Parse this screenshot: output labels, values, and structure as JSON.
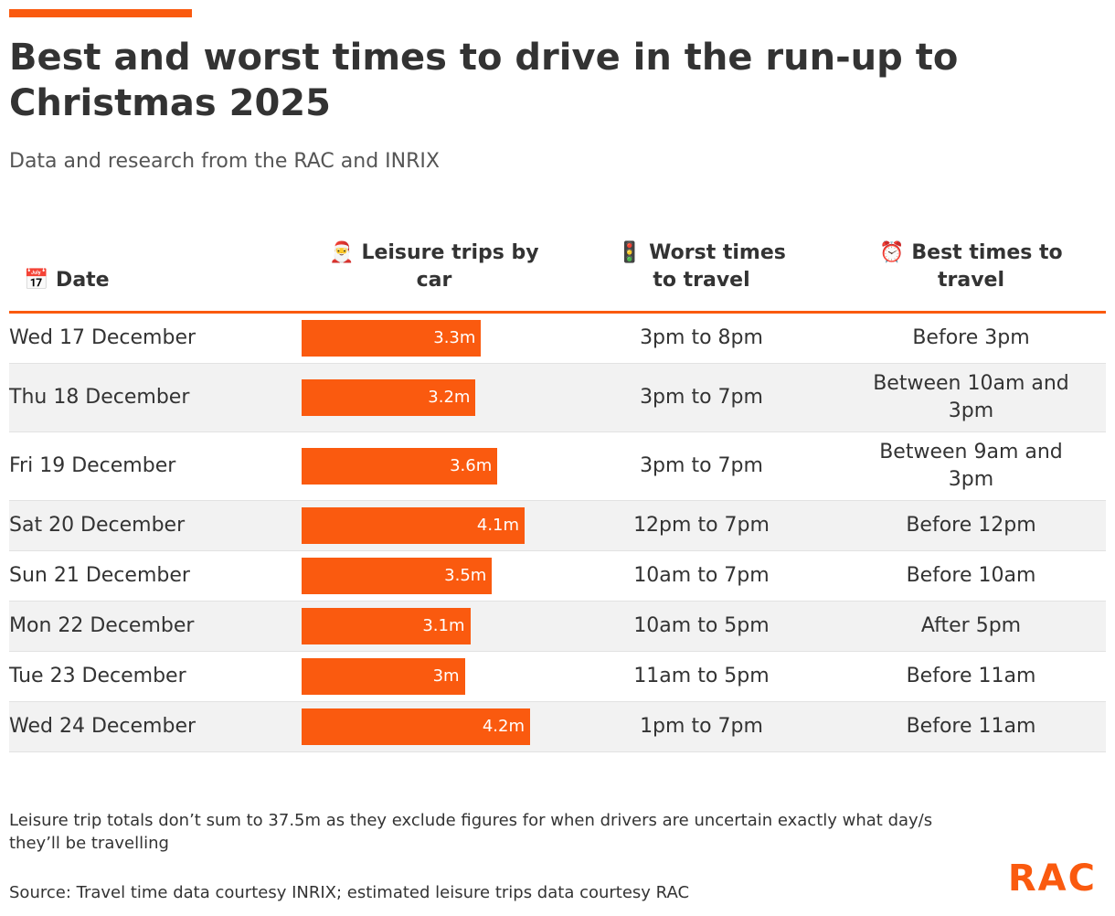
{
  "header": {
    "title": "Best and worst times to drive in the run-up to Christmas 2025",
    "subtitle": "Data and research from the RAC and INRIX"
  },
  "table": {
    "columns": [
      "📅 Date",
      "🎅 Leisure trips by car",
      "🚦 Worst times to travel",
      "⏰ Best times to travel"
    ],
    "rows": [
      {
        "date": "Wed 17 December",
        "trips": 3.3,
        "trips_label": "3.3m",
        "worst": "3pm to 8pm",
        "best": "Before 3pm"
      },
      {
        "date": "Thu 18 December",
        "trips": 3.2,
        "trips_label": "3.2m",
        "worst": "3pm to 7pm",
        "best": "Between 10am and 3pm"
      },
      {
        "date": "Fri 19 December",
        "trips": 3.6,
        "trips_label": "3.6m",
        "worst": "3pm to 7pm",
        "best": "Between 9am and 3pm"
      },
      {
        "date": "Sat 20 December",
        "trips": 4.1,
        "trips_label": "4.1m",
        "worst": "12pm to 7pm",
        "best": "Before 12pm"
      },
      {
        "date": "Sun 21 December",
        "trips": 3.5,
        "trips_label": "3.5m",
        "worst": "10am to 7pm",
        "best": "Before 10am"
      },
      {
        "date": "Mon 22 December",
        "trips": 3.1,
        "trips_label": "3.1m",
        "worst": "10am to 5pm",
        "best": "After 5pm"
      },
      {
        "date": "Tue 23 December",
        "trips": 3,
        "trips_label": "3m",
        "worst": "11am to 5pm",
        "best": "Before 11am"
      },
      {
        "date": "Wed 24 December",
        "trips": 4.2,
        "trips_label": "4.2m",
        "worst": "1pm to 7pm",
        "best": "Before 11am"
      }
    ]
  },
  "footer": {
    "note": "Leisure trip totals don’t sum to 37.5m as they exclude figures for when drivers are uncertain exactly what day/s they’ll be travelling",
    "source": "Source: Travel time data courtesy INRIX; estimated leisure trips data courtesy RAC",
    "logo": "RAC"
  }
}
